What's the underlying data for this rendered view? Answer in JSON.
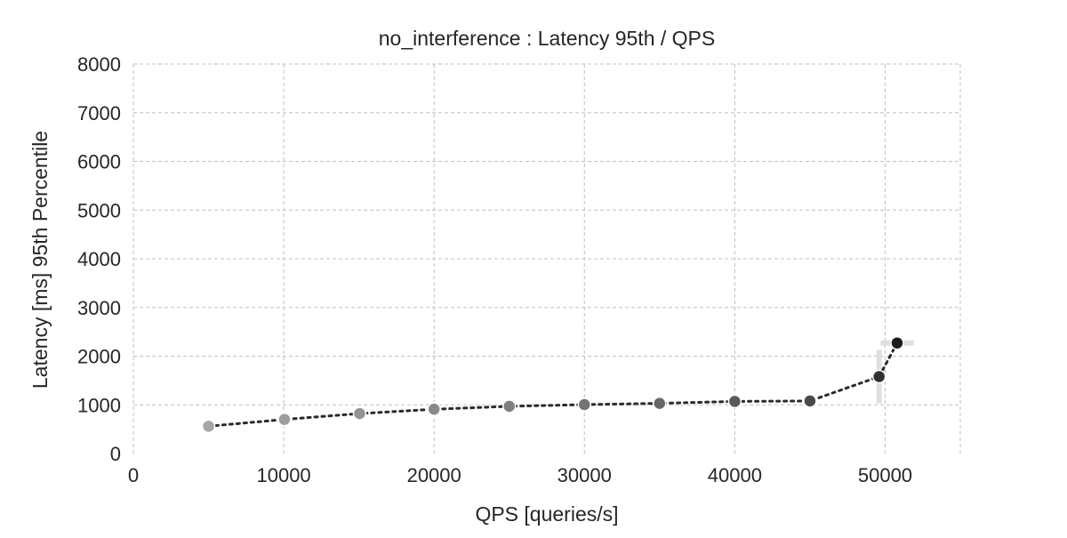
{
  "chart_data": {
    "type": "scatter",
    "title": "no_interference : Latency 95th / QPS",
    "xlabel": "QPS [queries/s]",
    "ylabel": "Latency [ms] 95th Percentile",
    "xlim": [
      0,
      55000
    ],
    "ylim": [
      0,
      8000
    ],
    "xticks": [
      0,
      10000,
      20000,
      30000,
      40000,
      50000
    ],
    "yticks": [
      0,
      1000,
      2000,
      3000,
      4000,
      5000,
      6000,
      7000,
      8000
    ],
    "grid": true,
    "series": [
      {
        "points": [
          {
            "x": 5000,
            "y": 560,
            "xerr": 0,
            "yerr": 0
          },
          {
            "x": 10050,
            "y": 700,
            "xerr": 0,
            "yerr": 0
          },
          {
            "x": 15050,
            "y": 820,
            "xerr": 0,
            "yerr": 0
          },
          {
            "x": 20000,
            "y": 910,
            "xerr": 0,
            "yerr": 0
          },
          {
            "x": 25000,
            "y": 970,
            "xerr": 0,
            "yerr": 0
          },
          {
            "x": 30000,
            "y": 1005,
            "xerr": 0,
            "yerr": 0
          },
          {
            "x": 35000,
            "y": 1030,
            "xerr": 0,
            "yerr": 0
          },
          {
            "x": 40000,
            "y": 1070,
            "xerr": 0,
            "yerr": 0
          },
          {
            "x": 45000,
            "y": 1080,
            "xerr": 0,
            "yerr": 0
          },
          {
            "x": 49600,
            "y": 1580,
            "xerr": 0,
            "yerr": 550
          },
          {
            "x": 50800,
            "y": 2270,
            "xerr": 1100,
            "yerr": 0
          }
        ],
        "colors": [
          "#a6a6a6",
          "#9c9c9c",
          "#939393",
          "#898989",
          "#7f7f7f",
          "#737373",
          "#676767",
          "#595959",
          "#4a4a4a",
          "#303030",
          "#1c1c1c"
        ]
      }
    ]
  }
}
